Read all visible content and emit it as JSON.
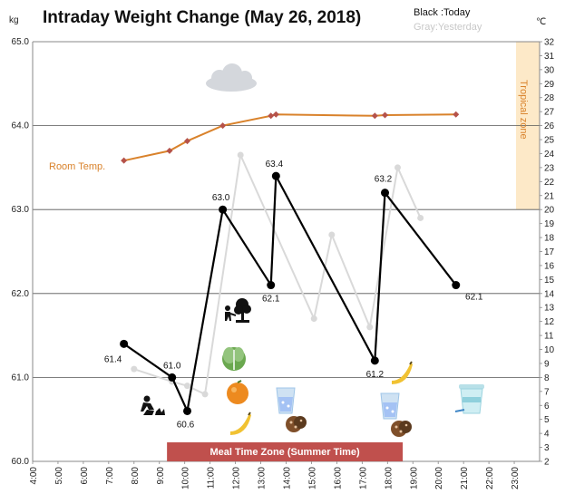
{
  "chart_data": {
    "type": "line",
    "title": "Intraday Weight Change (May 26, 2018)",
    "legend": {
      "today": "Black :Today",
      "yesterday": "Gray:Yesterday",
      "position": "top-right"
    },
    "y_left": {
      "unit": "kg",
      "range": [
        60.0,
        65.0
      ],
      "ticks": [
        "60.0",
        "61.0",
        "62.0",
        "63.0",
        "64.0",
        "65.0"
      ]
    },
    "y_right": {
      "unit": "℃",
      "range": [
        2,
        32
      ],
      "ticks": [
        "2",
        "3",
        "4",
        "5",
        "6",
        "7",
        "8",
        "9",
        "10",
        "11",
        "12",
        "13",
        "14",
        "15",
        "16",
        "17",
        "18",
        "19",
        "20",
        "21",
        "22",
        "23",
        "24",
        "25",
        "26",
        "27",
        "28",
        "29",
        "30",
        "31",
        "32"
      ]
    },
    "x_axis": {
      "range_hours": [
        4,
        24
      ],
      "ticks": [
        "4:00",
        "5:00",
        "6:00",
        "7:00",
        "8:00",
        "9:00",
        "10:00",
        "11:00",
        "12:00",
        "13:00",
        "14:00",
        "15:00",
        "16:00",
        "17:00",
        "18:00",
        "19:00",
        "20:00",
        "21:00",
        "22:00",
        "23:00"
      ]
    },
    "series": [
      {
        "name": "Today",
        "color": "#000000",
        "points": [
          {
            "x": 7.6,
            "y": 61.4,
            "label": "61.4"
          },
          {
            "x": 9.5,
            "y": 61.0,
            "label": "61.0"
          },
          {
            "x": 10.1,
            "y": 60.6,
            "label": "60.6"
          },
          {
            "x": 11.5,
            "y": 63.0,
            "label": "63.0"
          },
          {
            "x": 13.4,
            "y": 62.1,
            "label": "62.1"
          },
          {
            "x": 13.6,
            "y": 63.4,
            "label": "63.4"
          },
          {
            "x": 17.5,
            "y": 61.2,
            "label": "61.2"
          },
          {
            "x": 17.9,
            "y": 63.2,
            "label": "63.2"
          },
          {
            "x": 20.7,
            "y": 62.1,
            "label": "62.1"
          }
        ]
      },
      {
        "color": "#d9d9d9",
        "points": [
          {
            "x": 8.0,
            "y": 61.1
          },
          {
            "x": 9.5,
            "y": 60.95
          },
          {
            "x": 10.1,
            "y": 60.9
          },
          {
            "x": 10.8,
            "y": 60.8
          },
          {
            "x": 12.2,
            "y": 63.65
          },
          {
            "x": 15.1,
            "y": 61.7
          },
          {
            "x": 15.8,
            "y": 62.7
          },
          {
            "x": 17.3,
            "y": 61.6
          },
          {
            "x": 18.4,
            "y": 63.5
          },
          {
            "x": 19.3,
            "y": 62.9
          }
        ]
      },
      {
        "name": "Room Temp.",
        "axis": "right",
        "color": "#d9822b",
        "marker_color": "#b5524a",
        "points": [
          {
            "x": 7.6,
            "y": 23.5
          },
          {
            "x": 9.4,
            "y": 24.2
          },
          {
            "x": 10.1,
            "y": 24.9
          },
          {
            "x": 11.5,
            "y": 26.0
          },
          {
            "x": 13.4,
            "y": 26.7
          },
          {
            "x": 13.6,
            "y": 26.8
          },
          {
            "x": 17.5,
            "y": 26.7
          },
          {
            "x": 17.9,
            "y": 26.75
          },
          {
            "x": 20.7,
            "y": 26.8
          }
        ]
      }
    ],
    "bands": {
      "tropical_zone": {
        "from": 20,
        "to": 32,
        "label": "Tropical zone",
        "color": "#fde9c8"
      },
      "meal_time_zone": {
        "from_hour": 9.3,
        "to_hour": 18.6,
        "label": "Meal Time Zone  (Summer Time)",
        "color": "#c0504d"
      }
    },
    "grid": true,
    "gridline_values": [
      61.0,
      62.0,
      63.0,
      64.0
    ]
  },
  "icons": [
    {
      "name": "cloud-icon"
    },
    {
      "name": "gardening-person-icon"
    },
    {
      "name": "tree-person-icon"
    },
    {
      "name": "lettuce-icon"
    },
    {
      "name": "orange-icon"
    },
    {
      "name": "banana-icon"
    },
    {
      "name": "water-glass-icon"
    },
    {
      "name": "cookies-icon"
    },
    {
      "name": "water-glass-icon-2"
    },
    {
      "name": "cookies-icon-2"
    },
    {
      "name": "banana-icon-2"
    },
    {
      "name": "yogurt-cup-icon"
    }
  ]
}
